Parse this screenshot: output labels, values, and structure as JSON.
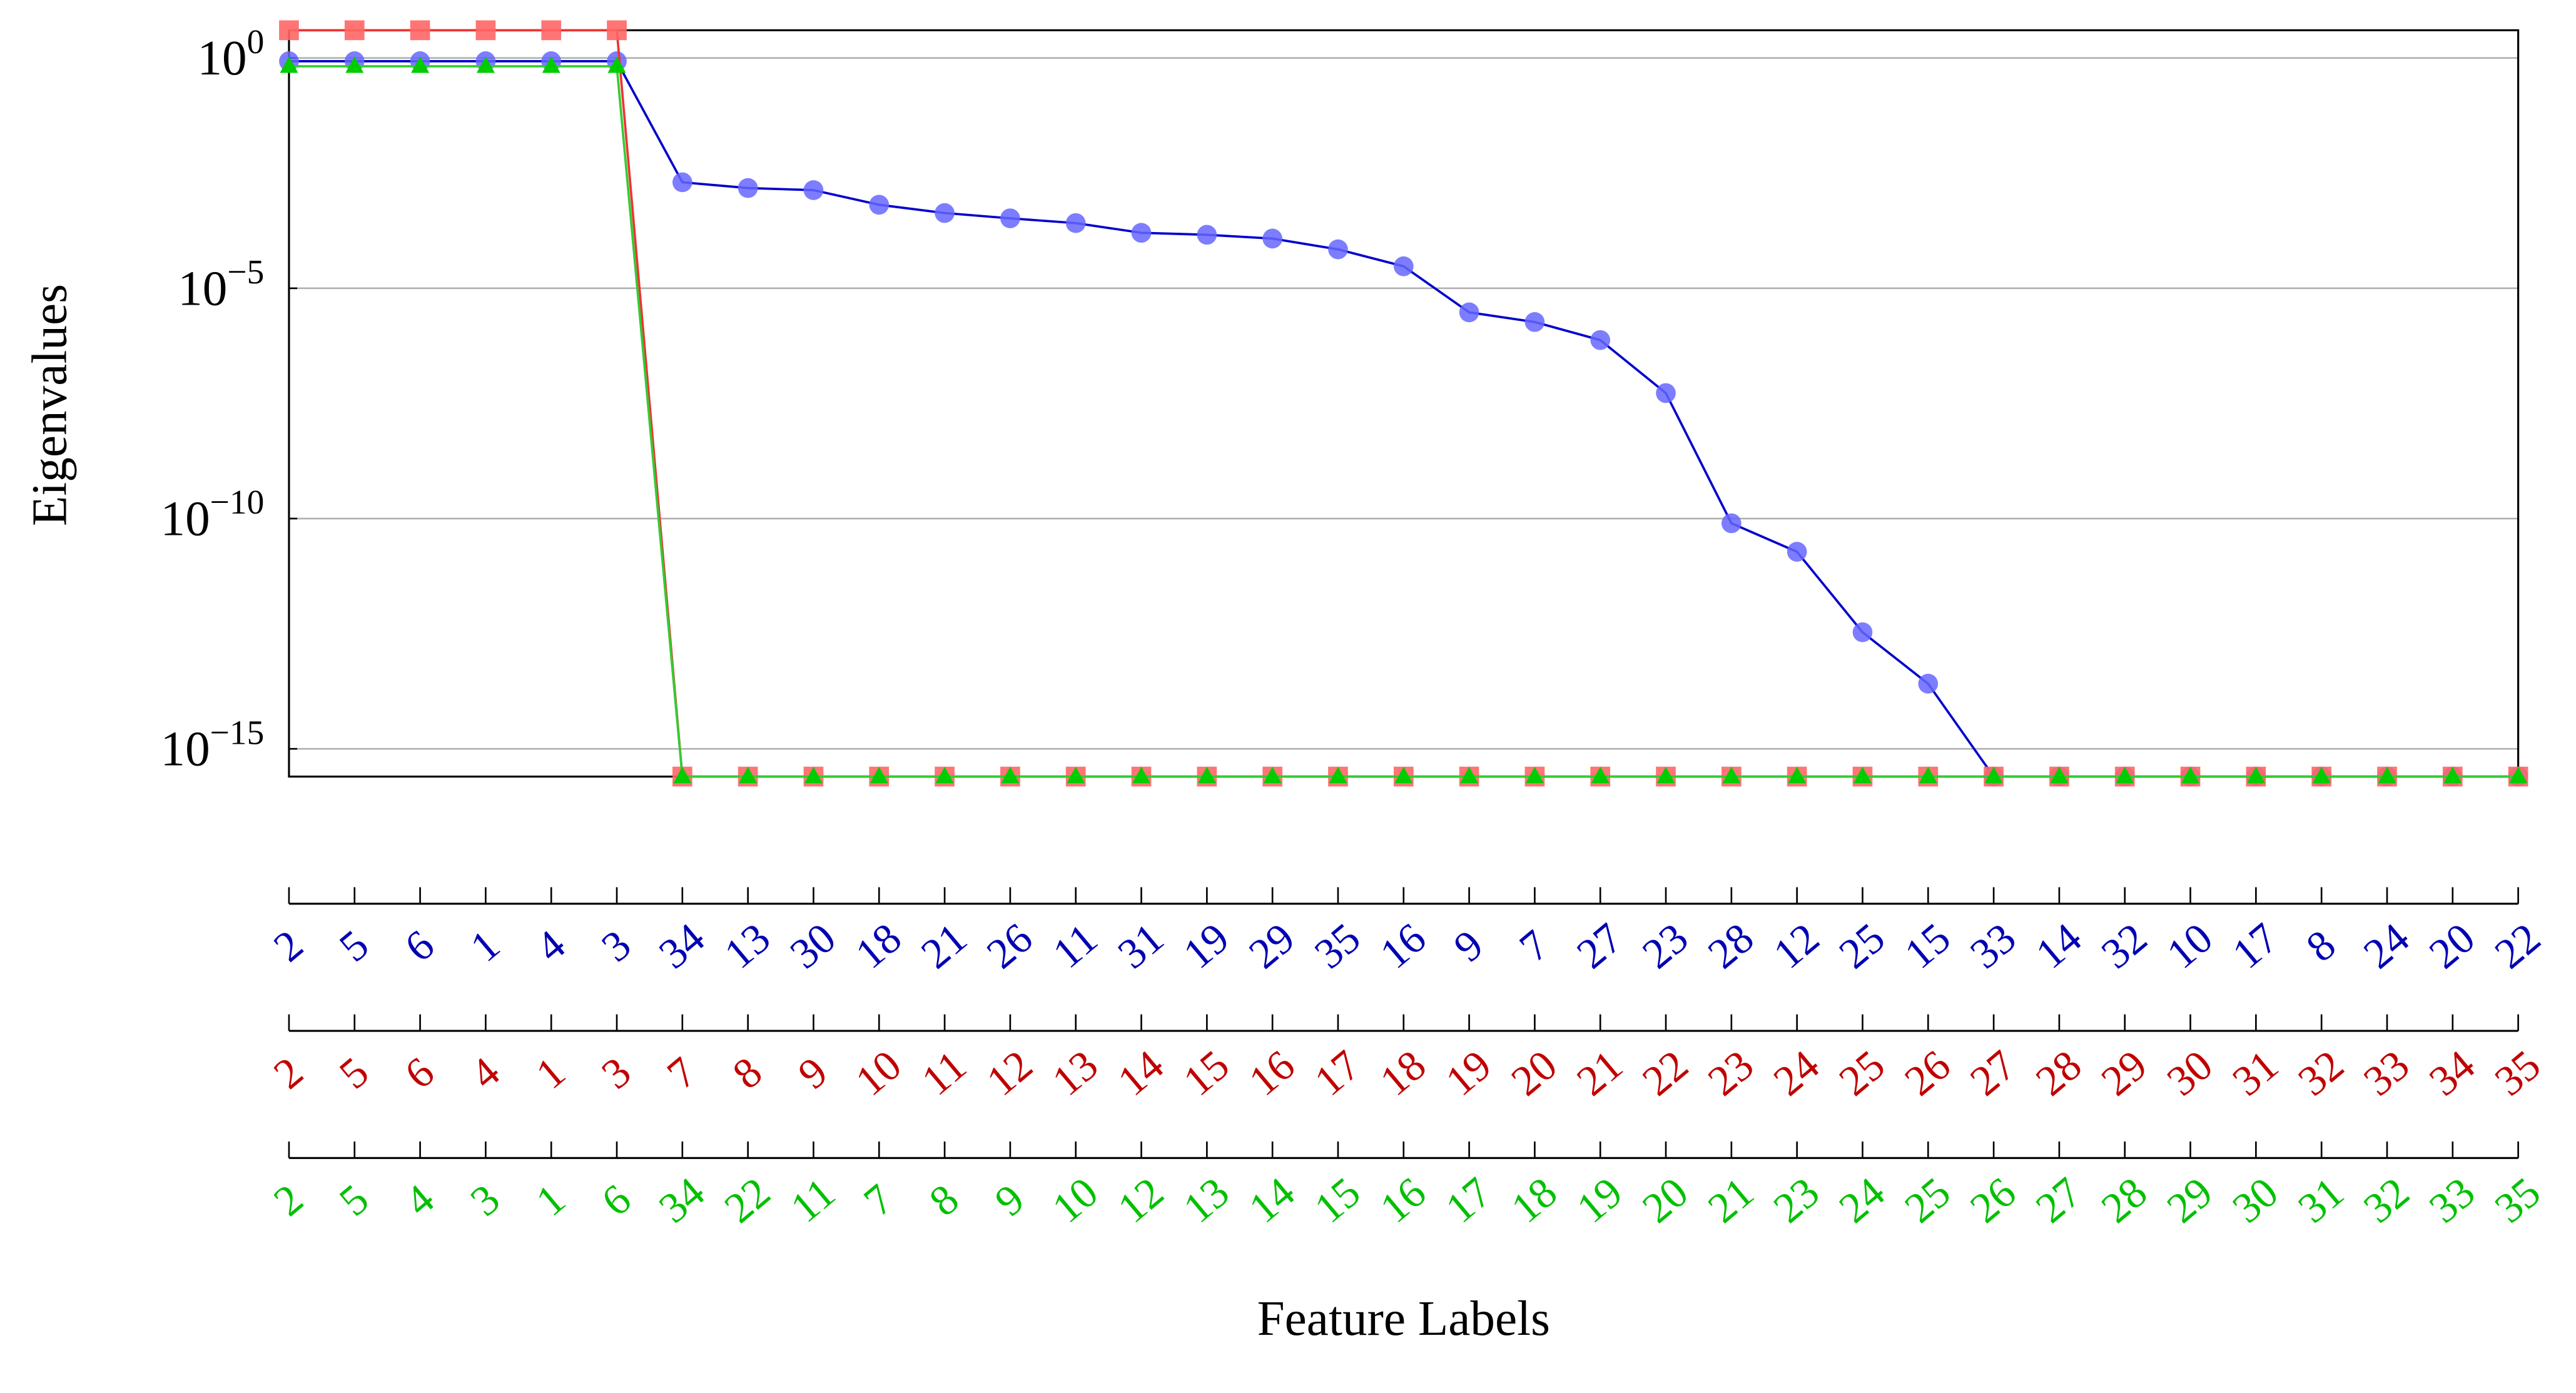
{
  "chart_data": {
    "type": "line",
    "y_label": "Eigenvalues",
    "x_label": "Feature Labels",
    "log_y": true,
    "grid": true,
    "ylim": [
      2.5e-16,
      4
    ],
    "yticks": [
      {
        "value": 1,
        "label": "10",
        "exponent": "0"
      },
      {
        "value": 1e-05,
        "label": "10",
        "exponent": "−5"
      },
      {
        "value": 1e-10,
        "label": "10",
        "exponent": "−10"
      },
      {
        "value": 1e-15,
        "label": "10",
        "exponent": "−15"
      }
    ],
    "category_rows": [
      {
        "color": "#0000b3",
        "labels": [
          "2",
          "5",
          "6",
          "1",
          "4",
          "3",
          "34",
          "13",
          "30",
          "18",
          "21",
          "26",
          "11",
          "31",
          "19",
          "29",
          "35",
          "16",
          "9",
          "7",
          "27",
          "23",
          "28",
          "12",
          "25",
          "15",
          "33",
          "14",
          "32",
          "10",
          "17",
          "8",
          "24",
          "20",
          "22"
        ]
      },
      {
        "color": "#c00000",
        "labels": [
          "2",
          "5",
          "6",
          "4",
          "1",
          "3",
          "7",
          "8",
          "9",
          "10",
          "11",
          "12",
          "13",
          "14",
          "15",
          "16",
          "17",
          "18",
          "19",
          "20",
          "21",
          "22",
          "23",
          "24",
          "25",
          "26",
          "27",
          "28",
          "29",
          "30",
          "31",
          "32",
          "33",
          "34",
          "35"
        ]
      },
      {
        "color": "#00c000",
        "labels": [
          "2",
          "5",
          "4",
          "3",
          "1",
          "6",
          "34",
          "22",
          "11",
          "7",
          "8",
          "9",
          "10",
          "12",
          "13",
          "14",
          "15",
          "16",
          "17",
          "18",
          "19",
          "20",
          "21",
          "23",
          "24",
          "25",
          "26",
          "27",
          "28",
          "29",
          "30",
          "31",
          "32",
          "33",
          "35"
        ]
      }
    ],
    "series": [
      {
        "color": "#0000cc",
        "marker": "circle",
        "marker_color": "#6666ff",
        "values": [
          0.85,
          0.85,
          0.85,
          0.85,
          0.85,
          0.85,
          0.002,
          0.0015,
          0.00135,
          0.00065,
          0.00043,
          0.00033,
          0.00026,
          0.00016,
          0.000145,
          0.00012,
          7e-05,
          3e-05,
          3e-06,
          1.85e-06,
          7.5e-07,
          5.3e-08,
          7.9e-11,
          1.9e-11,
          3.4e-13,
          2.6e-14,
          2.5e-16,
          2.5e-16,
          2.5e-16,
          2.5e-16,
          2.5e-16,
          2.5e-16,
          2.5e-16,
          2.5e-16,
          2.5e-16
        ]
      },
      {
        "color": "#ee3333",
        "marker": "square",
        "marker_color": "#ff6666",
        "values": [
          4,
          4,
          4,
          4,
          4,
          4,
          2.5e-16,
          2.5e-16,
          2.5e-16,
          2.5e-16,
          2.5e-16,
          2.5e-16,
          2.5e-16,
          2.5e-16,
          2.5e-16,
          2.5e-16,
          2.5e-16,
          2.5e-16,
          2.5e-16,
          2.5e-16,
          2.5e-16,
          2.5e-16,
          2.5e-16,
          2.5e-16,
          2.5e-16,
          2.5e-16,
          2.5e-16,
          2.5e-16,
          2.5e-16,
          2.5e-16,
          2.5e-16,
          2.5e-16,
          2.5e-16,
          2.5e-16,
          2.5e-16
        ]
      },
      {
        "color": "#33cc33",
        "marker": "triangle",
        "marker_color": "#00cc00",
        "values": [
          0.66,
          0.66,
          0.66,
          0.66,
          0.66,
          0.66,
          2.5e-16,
          2.5e-16,
          2.5e-16,
          2.5e-16,
          2.5e-16,
          2.5e-16,
          2.5e-16,
          2.5e-16,
          2.5e-16,
          2.5e-16,
          2.5e-16,
          2.5e-16,
          2.5e-16,
          2.5e-16,
          2.5e-16,
          2.5e-16,
          2.5e-16,
          2.5e-16,
          2.5e-16,
          2.5e-16,
          2.5e-16,
          2.5e-16,
          2.5e-16,
          2.5e-16,
          2.5e-16,
          2.5e-16,
          2.5e-16,
          2.5e-16,
          2.5e-16
        ]
      }
    ]
  }
}
